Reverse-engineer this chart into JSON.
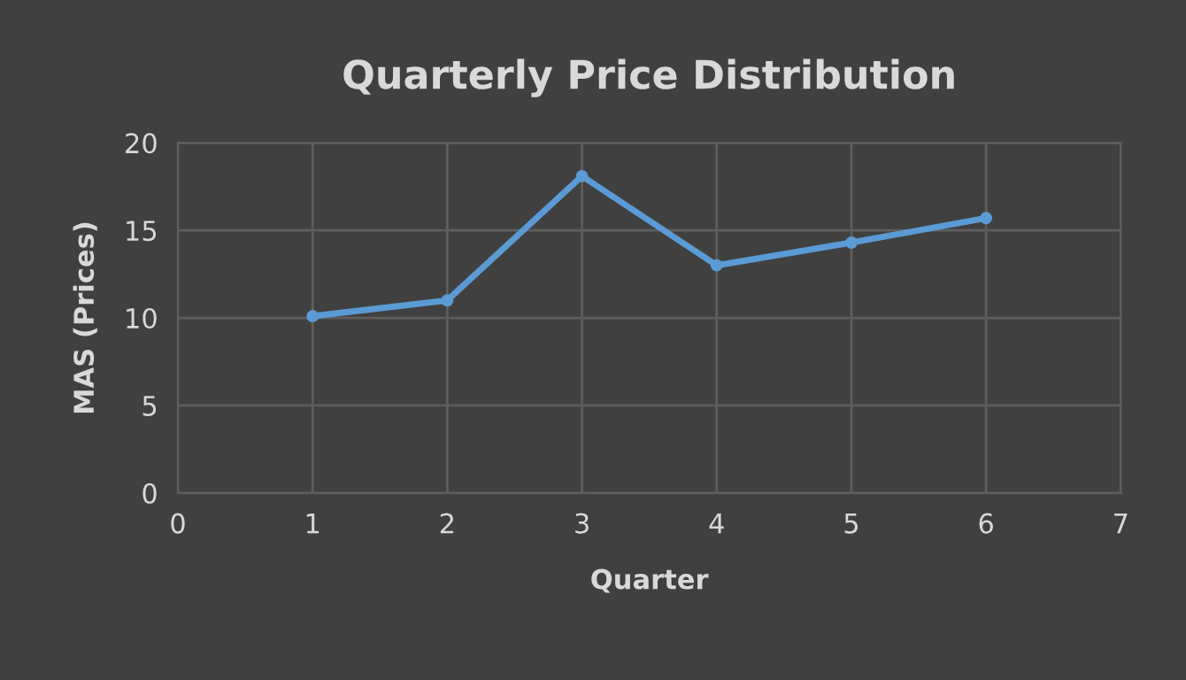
{
  "chart_data": {
    "type": "line",
    "title": "Quarterly Price Distribution",
    "xlabel": "Quarter",
    "ylabel": "MAS (Prices)",
    "x": [
      1,
      2,
      3,
      4,
      5,
      6
    ],
    "series": [
      {
        "color": "#5b9bd5",
        "values": [
          10.1,
          11.0,
          18.1,
          13.0,
          14.3,
          15.7
        ]
      }
    ],
    "xlim": [
      0,
      7
    ],
    "xticks": [
      0,
      1,
      2,
      3,
      4,
      5,
      6,
      7
    ],
    "ylim": [
      0,
      20
    ],
    "yticks": [
      0,
      5,
      10,
      15,
      20
    ],
    "grid": true,
    "marker": "circle",
    "line_style": "solid"
  }
}
